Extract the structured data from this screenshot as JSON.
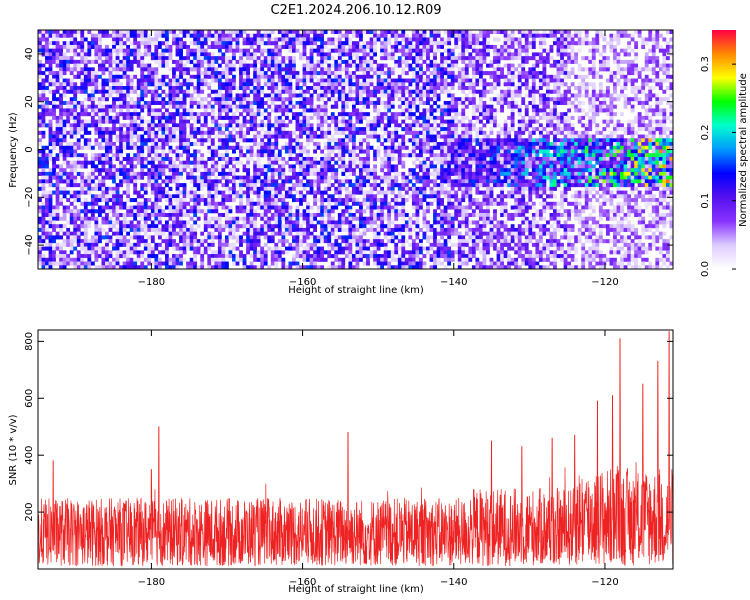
{
  "title": "C2E1.2024.206.10.12.R09",
  "colors": {
    "snr_line": "#ee2222",
    "colormap": [
      "#ffffff",
      "#ddccff",
      "#8833ff",
      "#5511ee",
      "#0000ff",
      "#0099ff",
      "#00ffcc",
      "#00ff00",
      "#ffff00",
      "#ff8800",
      "#ff0044"
    ]
  },
  "chart_data": [
    {
      "type": "heatmap",
      "xlabel": "Height of straight line (km)",
      "ylabel": "Frequency (Hz)",
      "xlim": [
        -195,
        -111
      ],
      "ylim": [
        -50,
        50
      ],
      "xticks": [
        -180,
        -160,
        -140,
        -120
      ],
      "yticks": [
        -40,
        -20,
        0,
        20,
        40
      ],
      "colorbar": {
        "label": "Normalized spectral amplitude",
        "range": [
          0.0,
          0.35
        ],
        "ticks": [
          "0.0",
          "0.1",
          "0.2",
          "0.3"
        ],
        "tick_values": [
          0.0,
          0.1,
          0.2,
          0.3
        ]
      },
      "signal_band": {
        "x_from": -142,
        "x_to": -111,
        "frequency_hz": [
          -15,
          5
        ],
        "peak_amplitude": 0.3
      }
    },
    {
      "type": "line",
      "xlabel": "Height of straight line (km)",
      "ylabel": "SNR (10 * v/v)",
      "xlim": [
        -195,
        -111
      ],
      "ylim": [
        0,
        840
      ],
      "xticks": [
        -180,
        -160,
        -140,
        -120
      ],
      "yticks": [
        200,
        400,
        600,
        800
      ],
      "series": [
        {
          "baseline_mean": 130,
          "noise_range": [
            10,
            250
          ],
          "spikes": [
            {
              "x": -193,
              "y": 380
            },
            {
              "x": -180,
              "y": 350
            },
            {
              "x": -179,
              "y": 500
            },
            {
              "x": -154,
              "y": 480
            },
            {
              "x": -135,
              "y": 450
            },
            {
              "x": -131,
              "y": 430
            },
            {
              "x": -127,
              "y": 460
            },
            {
              "x": -124,
              "y": 470
            },
            {
              "x": -121,
              "y": 590
            },
            {
              "x": -119,
              "y": 610
            },
            {
              "x": -118,
              "y": 810
            },
            {
              "x": -115,
              "y": 650
            },
            {
              "x": -113,
              "y": 730
            },
            {
              "x": -111.5,
              "y": 835
            }
          ]
        }
      ]
    }
  ]
}
